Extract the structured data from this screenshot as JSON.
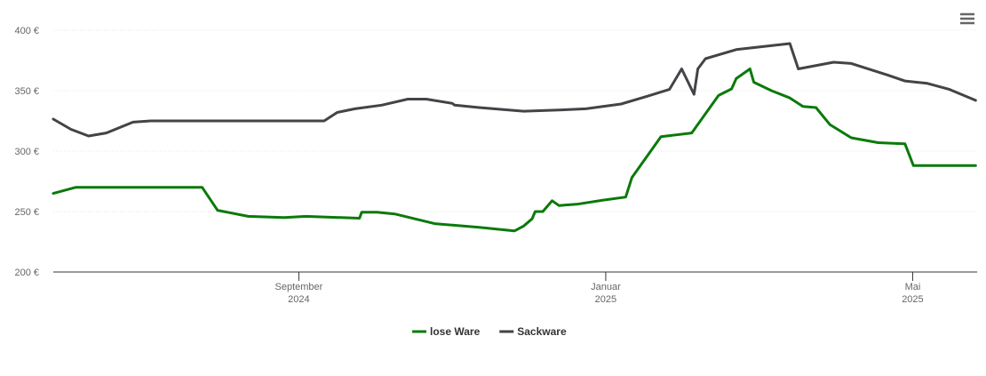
{
  "chart_data": {
    "type": "line",
    "xlim": [
      4.8,
      16.84
    ],
    "xticks": [
      {
        "value": 8,
        "label": "September 2024"
      },
      {
        "value": 12,
        "label": "Januar 2025"
      },
      {
        "value": 16,
        "label": "Mai 2025"
      }
    ],
    "ylim": [
      200,
      400
    ],
    "yticks": [
      {
        "value": 200,
        "label": "200 €"
      },
      {
        "value": 250,
        "label": "250 €"
      },
      {
        "value": 300,
        "label": "300 €"
      },
      {
        "value": 350,
        "label": "350 €"
      },
      {
        "value": 400,
        "label": "400 €"
      }
    ],
    "grid": true,
    "legend": "bottom",
    "series": [
      {
        "name": "lose Ware",
        "color": "#0a7a0a",
        "x": [
          4.8,
          5.09,
          6.74,
          6.94,
          7.34,
          7.81,
          8.09,
          8.79,
          8.82,
          9.02,
          9.25,
          9.77,
          10.35,
          10.81,
          10.93,
          11.04,
          11.08,
          11.18,
          11.3,
          11.39,
          11.62,
          11.97,
          12.26,
          12.34,
          12.72,
          13.12,
          13.47,
          13.64,
          13.7,
          13.88,
          13.93,
          14.16,
          14.4,
          14.57,
          14.74,
          14.92,
          15.2,
          15.55,
          15.9,
          16.01,
          16.82
        ],
        "values": [
          265,
          270,
          270,
          251,
          246,
          245,
          246,
          244.5,
          249.5,
          249.5,
          248,
          240,
          237,
          234,
          238,
          244,
          250,
          250,
          259,
          255,
          256,
          259.5,
          262,
          278,
          312,
          315,
          346,
          351.5,
          360,
          368,
          357,
          350,
          344,
          337,
          336,
          322,
          311,
          307,
          306,
          288,
          288
        ]
      },
      {
        "name": "Sackware",
        "color": "#434348",
        "x": [
          4.8,
          5.03,
          5.26,
          5.49,
          5.84,
          6.07,
          8.33,
          8.5,
          8.73,
          9.08,
          9.42,
          9.66,
          10.0,
          10.03,
          10.35,
          10.93,
          11.39,
          11.74,
          12.2,
          12.55,
          12.83,
          12.99,
          13.15,
          13.2,
          13.3,
          13.7,
          14.4,
          14.51,
          14.97,
          15.2,
          15.67,
          15.9,
          16.19,
          16.48,
          16.82
        ],
        "values": [
          326.5,
          318,
          312.5,
          315,
          324,
          325,
          325,
          332,
          335,
          338,
          343,
          343,
          339.5,
          338,
          336,
          333,
          334,
          335,
          339,
          345.5,
          351,
          368,
          347,
          368,
          376.5,
          384,
          389,
          368,
          373.5,
          372.5,
          363,
          358,
          356,
          351,
          342
        ]
      }
    ]
  }
}
